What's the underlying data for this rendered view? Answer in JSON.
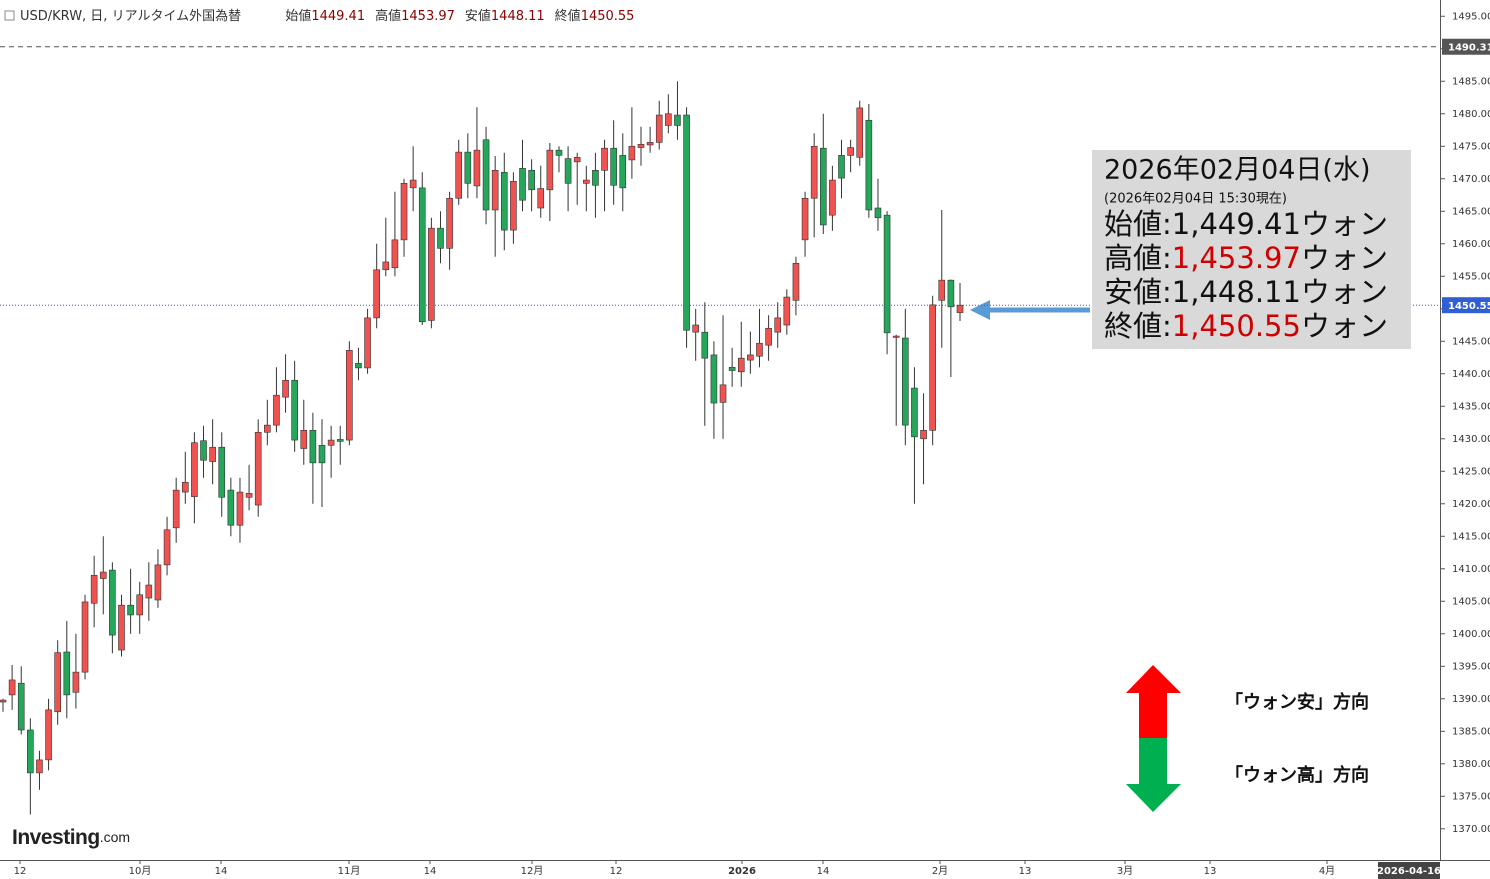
{
  "chart_data": {
    "type": "candlestick",
    "header": {
      "symbol": "USD/KRW, 日, リアルタイム外国為替",
      "fields": [
        {
          "label": "始値",
          "value": 1449.41
        },
        {
          "label": "高値",
          "value": 1453.97
        },
        {
          "label": "安値",
          "value": 1448.11
        },
        {
          "label": "終値",
          "value": 1450.55
        }
      ]
    },
    "open": [
      1389.5,
      1390.6,
      1392.4,
      1385.2,
      1378.6,
      1380.6,
      1388.0,
      1397.2,
      1391,
      1394.1,
      1404.7,
      1408.5,
      1409.8,
      1397.5,
      1404.4,
      1402.9,
      1405.5,
      1405.2,
      1410.6,
      1416.3,
      1421.8,
      1421.1,
      1429.7,
      1426.5,
      1428.7,
      1422.1,
      1416.7,
      1421,
      1419.8,
      1431,
      1432.1,
      1436.4,
      1439,
      1428.5,
      1431.3,
      1429,
      1429,
      1429.9,
      1429.8,
      1441.6,
      1440.9,
      1448.6,
      1456,
      1456.3,
      1460.6,
      1468.6,
      1468.6,
      1448.2,
      1462.4,
      1459.3,
      1467,
      1474.1,
      1468.9,
      1476,
      1465.2,
      1471,
      1462.1,
      1471.6,
      1471.3,
      1465.5,
      1468.3,
      1474.4,
      1473.1,
      1472.6,
      1469.3,
      1471.3,
      1471.3,
      1474.7,
      1473.6,
      1472.9,
      1474.8,
      1475.2,
      1475.6,
      1478.2,
      1479.8,
      1479.8,
      1446.4,
      1446.4,
      1442.9,
      1435.6,
      1441,
      1440.3,
      1442.1,
      1442.7,
      1444.4,
      1446.4,
      1447.5,
      1451.3,
      1460.6,
      1467,
      1474.7,
      1464.4,
      1473.6,
      1473.6,
      1473.3,
      1479,
      1465.5,
      1464.4,
      1445.6,
      1445.5,
      1437.8,
      1430,
      1431.3,
      1451.3,
      1454.4,
      1449.41
    ],
    "high": [
      1390,
      1395.2,
      1395,
      1387,
      1382,
      1390,
      1399,
      1402,
      1400,
      1406,
      1412,
      1415,
      1411,
      1406,
      1410,
      1408,
      1411,
      1413,
      1418,
      1424,
      1428,
      1431,
      1432,
      1433,
      1431,
      1424,
      1424,
      1426,
      1433,
      1436,
      1441,
      1443,
      1442,
      1436,
      1434,
      1433,
      1432,
      1432,
      1445,
      1444,
      1450,
      1460,
      1464,
      1468,
      1470,
      1475,
      1471,
      1464,
      1465,
      1468,
      1476,
      1477,
      1481,
      1478,
      1473.5,
      1474,
      1471,
      1476,
      1473,
      1472,
      1475.5,
      1475,
      1475,
      1474,
      1472,
      1474,
      1476,
      1479,
      1477,
      1481,
      1478,
      1478,
      1482,
      1483,
      1485,
      1481,
      1450,
      1451,
      1445,
      1449,
      1444,
      1448,
      1446.5,
      1450,
      1449,
      1451,
      1453,
      1458,
      1468,
      1477,
      1480,
      1472,
      1476,
      1476,
      1482,
      1481.5,
      1470,
      1465,
      1446,
      1450,
      1441,
      1437,
      1452,
      1465.2,
      1454.5,
      1453.97
    ],
    "low": [
      1388,
      1388.3,
      1384.5,
      1372.2,
      1376,
      1379,
      1386,
      1387,
      1388.5,
      1393,
      1401,
      1403,
      1397,
      1396.5,
      1400,
      1400,
      1402,
      1404,
      1409,
      1414,
      1420,
      1417,
      1424,
      1423,
      1418,
      1415,
      1414,
      1419,
      1418,
      1429,
      1431,
      1434,
      1428,
      1426,
      1420,
      1419.5,
      1424,
      1426,
      1429,
      1439,
      1440,
      1447,
      1455,
      1455,
      1458,
      1465,
      1447.5,
      1447,
      1457,
      1456,
      1466,
      1467,
      1467,
      1463,
      1458,
      1459,
      1460,
      1465,
      1465,
      1464,
      1463.5,
      1471,
      1465,
      1466,
      1465,
      1464,
      1465,
      1466,
      1465,
      1470,
      1472,
      1474,
      1474.5,
      1477,
      1476,
      1444,
      1442,
      1432,
      1430,
      1430,
      1438,
      1438,
      1440,
      1441,
      1442,
      1444,
      1446,
      1449,
      1458,
      1461,
      1461.5,
      1462,
      1467,
      1471,
      1472,
      1464,
      1462,
      1443,
      1432,
      1429,
      1420,
      1423,
      1429,
      1444,
      1439.5,
      1448.11
    ],
    "close": [
      1389.8,
      1392.9,
      1385.2,
      1378.6,
      1380.6,
      1388.3,
      1397.1,
      1390.6,
      1394.1,
      1404.9,
      1409,
      1409.5,
      1399.8,
      1404.4,
      1402.9,
      1406,
      1407.5,
      1410.6,
      1416,
      1422.1,
      1423.3,
      1429.4,
      1426.7,
      1428.7,
      1421,
      1416.7,
      1421.8,
      1421.6,
      1431,
      1432.1,
      1436.7,
      1439,
      1429.8,
      1431.3,
      1426.3,
      1426.3,
      1429.8,
      1429.6,
      1443.6,
      1440.9,
      1448.6,
      1456,
      1457.2,
      1460.6,
      1469.3,
      1469.8,
      1448,
      1462.4,
      1459.3,
      1467,
      1474.1,
      1469.3,
      1474.4,
      1465.2,
      1471.3,
      1462.1,
      1469.6,
      1466.7,
      1468.3,
      1468.5,
      1474.4,
      1473.6,
      1469.3,
      1473.3,
      1469.8,
      1469,
      1474.7,
      1469,
      1468.6,
      1475,
      1475.3,
      1475.6,
      1479.8,
      1480,
      1478.2,
      1446.7,
      1447.5,
      1442.4,
      1435.5,
      1438.3,
      1440.5,
      1442.4,
      1442.9,
      1444.7,
      1447,
      1448.6,
      1451.8,
      1457,
      1467,
      1475,
      1462.9,
      1469.8,
      1470.1,
      1474.8,
      1480.9,
      1465.2,
      1464,
      1446.3,
      1445.8,
      1432.1,
      1430.3,
      1431.3,
      1450.6,
      1454.4,
      1450.3,
      1450.55
    ],
    "up_color": "#ef5350",
    "down_color": "#26a65b",
    "ylim": [
      1365.2,
      1497.5
    ],
    "yticks": [
      {
        "value": 1370,
        "label": "1370.00"
      },
      {
        "value": 1375,
        "label": "1375.00"
      },
      {
        "value": 1380,
        "label": "1380.00"
      },
      {
        "value": 1385,
        "label": "1385.00"
      },
      {
        "value": 1390,
        "label": "1390.00"
      },
      {
        "value": 1395,
        "label": "1395.00"
      },
      {
        "value": 1400,
        "label": "1400.00"
      },
      {
        "value": 1405,
        "label": "1405.00"
      },
      {
        "value": 1410,
        "label": "1410.00"
      },
      {
        "value": 1415,
        "label": "1415.00"
      },
      {
        "value": 1420,
        "label": "1420.00"
      },
      {
        "value": 1425,
        "label": "1425.00"
      },
      {
        "value": 1430,
        "label": "1430.00"
      },
      {
        "value": 1435,
        "label": "1435.00"
      },
      {
        "value": 1440,
        "label": "1440.00"
      },
      {
        "value": 1445,
        "label": "1445.00"
      },
      {
        "value": 1450,
        "label": "1450.00"
      },
      {
        "value": 1455,
        "label": "1455.00"
      },
      {
        "value": 1460,
        "label": "1460.00"
      },
      {
        "value": 1465,
        "label": "1465.00"
      },
      {
        "value": 1470,
        "label": "1470.00"
      },
      {
        "value": 1475,
        "label": "1475.00"
      },
      {
        "value": 1480,
        "label": "1480.00"
      },
      {
        "value": 1485,
        "label": "1485.00"
      },
      {
        "value": 1490,
        "label": "1490.00"
      },
      {
        "value": 1495,
        "label": "1495.00"
      }
    ],
    "reference_lines": [
      {
        "value": 1490.31,
        "color": "#555555",
        "style": "dashed"
      },
      {
        "value": 1450.55,
        "color": "#2f5fd0",
        "style": "dotted"
      }
    ],
    "x_labels": [
      "12",
      "10月",
      "14",
      "11月",
      "14",
      "12月",
      "12",
      "2026",
      "14",
      "2月",
      "13",
      "3月",
      "13",
      "4月"
    ],
    "cursor_date": "2026-04-16",
    "info_box": {
      "title": "2026年02月04日(水)",
      "subtitle": "(2026年02月04日 15:30現在)",
      "separator": ":",
      "rows": [
        {
          "label": "始値",
          "value": "1,449.41",
          "unit": "ウォン",
          "color": "#111111"
        },
        {
          "label": "高値",
          "value": "1,453.97",
          "unit": "ウォン",
          "color": "#d00000"
        },
        {
          "label": "安値",
          "value": "1,448.11",
          "unit": "ウォン",
          "color": "#111111"
        },
        {
          "label": "終値",
          "value": "1,450.55",
          "unit": "ウォン",
          "color": "#d00000"
        }
      ]
    },
    "direction_labels": {
      "up": "「ウォン安」方向",
      "down": "「ウォン高」方向"
    },
    "logo": {
      "name": "Investing",
      "suffix": ".com"
    }
  }
}
